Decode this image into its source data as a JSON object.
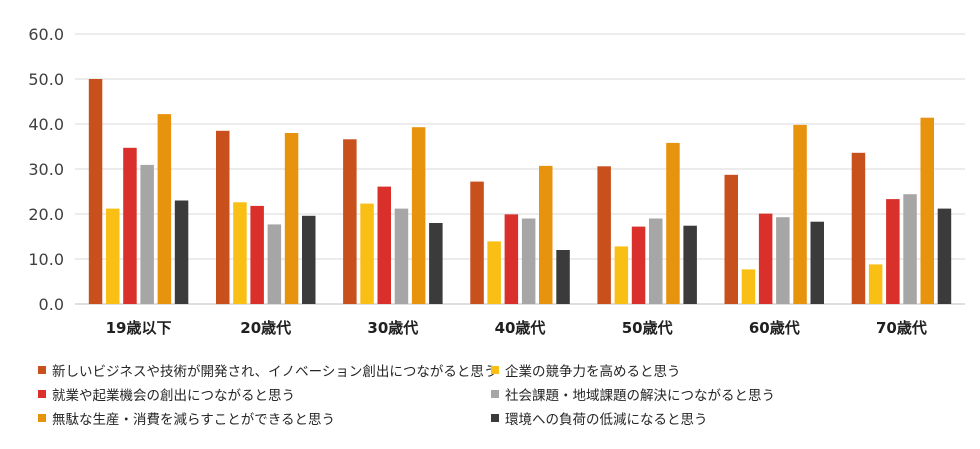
{
  "chart_data": {
    "type": "bar",
    "categories": [
      "19歳以下",
      "20歳代",
      "30歳代",
      "40歳代",
      "50歳代",
      "60歳代",
      "70歳代"
    ],
    "yticks": [
      "0.0",
      "10.0",
      "20.0",
      "30.0",
      "40.0",
      "50.0",
      "60.0"
    ],
    "ylim": [
      0,
      60
    ],
    "grid": true,
    "legend_position": "bottom",
    "series": [
      {
        "name": "新しいビジネスや技術が開発され、イノベーション創出につながると思う",
        "color": "#C8501C",
        "values": [
          50.0,
          38.5,
          36.6,
          27.2,
          30.6,
          28.7,
          33.6
        ]
      },
      {
        "name": "企業の競争力を高めると思う",
        "color": "#F9BF15",
        "values": [
          21.2,
          22.6,
          22.3,
          13.9,
          12.8,
          7.7,
          8.8
        ]
      },
      {
        "name": "就業や起業機会の創出につながると思う",
        "color": "#D9302B",
        "values": [
          34.7,
          21.8,
          26.1,
          19.9,
          17.2,
          20.1,
          23.3
        ]
      },
      {
        "name": "社会課題・地域課題の解決につながると思う",
        "color": "#A6A6A6",
        "values": [
          30.9,
          17.7,
          21.2,
          19.0,
          19.0,
          19.3,
          24.4
        ]
      },
      {
        "name": "無駄な生産・消費を減らすことができると思う",
        "color": "#E8930E",
        "values": [
          42.2,
          38.0,
          39.3,
          30.7,
          35.8,
          39.8,
          41.4
        ]
      },
      {
        "name": "環境への負荷の低減になると思う",
        "color": "#3B3B3B",
        "values": [
          23.0,
          19.6,
          18.0,
          12.0,
          17.4,
          18.3,
          21.2
        ]
      }
    ]
  }
}
